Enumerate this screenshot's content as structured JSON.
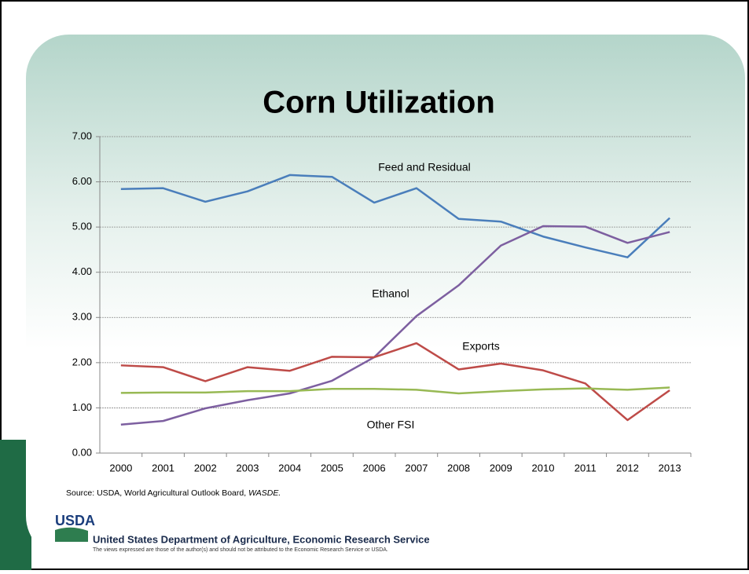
{
  "chart_data": {
    "type": "line",
    "title": "Corn Utilization",
    "categories": [
      "2000",
      "2001",
      "2002",
      "2003",
      "2004",
      "2005",
      "2006",
      "2007",
      "2008",
      "2009",
      "2010",
      "2011",
      "2012",
      "2013"
    ],
    "series": [
      {
        "name": "Feed and Residual",
        "color": "#4a7ebb",
        "values": [
          5.84,
          5.86,
          5.56,
          5.79,
          6.15,
          6.11,
          5.54,
          5.86,
          5.18,
          5.12,
          4.79,
          4.55,
          4.33,
          5.2
        ]
      },
      {
        "name": "Ethanol",
        "color": "#7d5fa0",
        "values": [
          0.63,
          0.71,
          0.99,
          1.17,
          1.32,
          1.6,
          2.12,
          3.03,
          3.71,
          4.59,
          5.02,
          5.01,
          4.65,
          4.89
        ]
      },
      {
        "name": "Exports",
        "color": "#be4b48",
        "values": [
          1.94,
          1.9,
          1.59,
          1.9,
          1.82,
          2.13,
          2.12,
          2.43,
          1.85,
          1.98,
          1.83,
          1.54,
          0.73,
          1.39
        ]
      },
      {
        "name": "Other FSI",
        "color": "#98b954",
        "values": [
          1.33,
          1.34,
          1.34,
          1.37,
          1.37,
          1.42,
          1.42,
          1.4,
          1.32,
          1.37,
          1.41,
          1.43,
          1.4,
          1.45
        ]
      }
    ],
    "ylim": [
      0,
      7
    ],
    "yticks": [
      {
        "value": 0,
        "label": "0.00"
      },
      {
        "value": 1,
        "label": "1.00"
      },
      {
        "value": 2,
        "label": "2.00"
      },
      {
        "value": 3,
        "label": "3.00"
      },
      {
        "value": 4,
        "label": "4.00"
      },
      {
        "value": 5,
        "label": "5.00"
      },
      {
        "value": 6,
        "label": "6.00"
      },
      {
        "value": 7,
        "label": "7.00"
      }
    ],
    "grid": true,
    "source": "Source:  USDA, World Agricultural Outlook Board,",
    "source_emphasis": "WASDE.",
    "logo": "USDA",
    "footer": "United States Department of Agriculture, Economic Research Service",
    "disclaimer": "The views expressed are those of the author(s) and should not be attributed to the Economic Research Service or USDA."
  }
}
